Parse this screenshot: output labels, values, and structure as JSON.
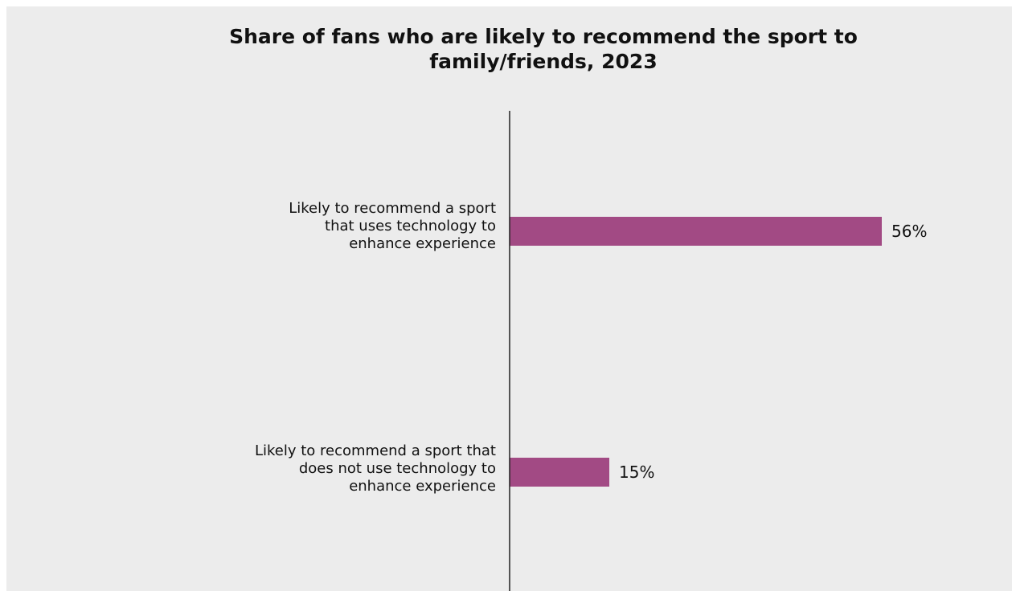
{
  "chart_data": {
    "type": "bar",
    "orientation": "horizontal",
    "title": "Share of fans who are likely to recommend the sport to\nfamily/friends, 2023",
    "categories": [
      "Likely to recommend a sport\nthat uses technology to\nenhance experience",
      "Likely to recommend a sport that\ndoes not use technology to\nenhance experience"
    ],
    "values": [
      56,
      15
    ],
    "data_labels": [
      "56%",
      "15%"
    ],
    "value_unit": "%",
    "xlabel": "",
    "ylabel": "",
    "grid": false,
    "legend": "none",
    "colors": {
      "bar": "#a24a84",
      "axis": "#222222",
      "background": "#ececec"
    }
  }
}
